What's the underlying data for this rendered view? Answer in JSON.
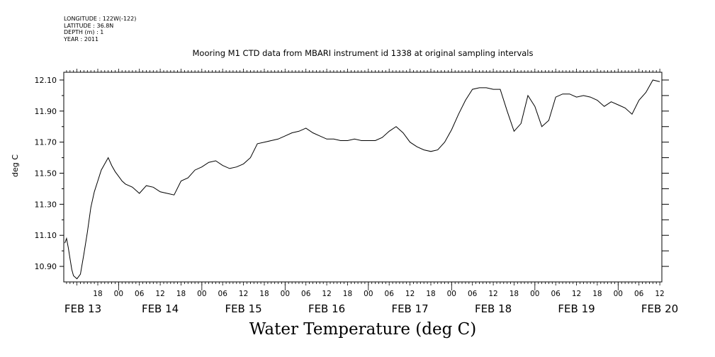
{
  "metadata": {
    "longitude": "LONGITUDE : 122W(-122)",
    "latitude": "LATITUDE : 36.8N",
    "depth": "DEPTH (m) : 1",
    "year": "YEAR : 2011"
  },
  "chart_data": {
    "type": "line",
    "title": "Mooring M1 CTD data from MBARI instrument id 1338 at original sampling intervals",
    "xlabel": "Water Temperature (deg C)",
    "ylabel": "deg C",
    "ylim": [
      10.8,
      12.15
    ],
    "yticks": [
      "10.90",
      "11.10",
      "11.30",
      "11.50",
      "11.70",
      "11.90",
      "12.10"
    ],
    "x_unit": "hours from 2011-02-13 00:00",
    "xlim": [
      8.2,
      180.6
    ],
    "hour_tick_labels": [
      "18",
      "00",
      "06",
      "12",
      "18",
      "00",
      "06",
      "12",
      "18",
      "00",
      "06",
      "12",
      "18",
      "00",
      "06",
      "12",
      "18",
      "00",
      "06",
      "12",
      "18",
      "00",
      "06",
      "12",
      "18",
      "00",
      "06",
      "12",
      "18",
      "00",
      "06",
      "12"
    ],
    "day_labels": [
      "FEB 13",
      "FEB 14",
      "FEB 15",
      "FEB 16",
      "FEB 17",
      "FEB 18",
      "FEB 19",
      "FEB 20"
    ],
    "series": [
      {
        "x": [
          8.5,
          9,
          9.5,
          10,
          10.5,
          11,
          12,
          13,
          14,
          15,
          16,
          17,
          18,
          19,
          20,
          21,
          22,
          23,
          24,
          25,
          26,
          27,
          28,
          30,
          32,
          34,
          36,
          38,
          40,
          42,
          44,
          46,
          48,
          50,
          52,
          54,
          56,
          58,
          60,
          62,
          64,
          66,
          68,
          70,
          72,
          74,
          76,
          78,
          80,
          82,
          84,
          86,
          88,
          90,
          92,
          94,
          96,
          98,
          100,
          102,
          104,
          106,
          108,
          110,
          112,
          114,
          116,
          118,
          120,
          122,
          124,
          126,
          128,
          130,
          132,
          134,
          136,
          138,
          140,
          142,
          144,
          146,
          148,
          150,
          152,
          154,
          156,
          158,
          160,
          162,
          164,
          166,
          168,
          170,
          172,
          174,
          176,
          178,
          180
        ],
        "y": [
          11.05,
          11.08,
          11.02,
          10.95,
          10.88,
          10.84,
          10.82,
          10.85,
          10.98,
          11.12,
          11.28,
          11.38,
          11.45,
          11.52,
          11.56,
          11.6,
          11.55,
          11.51,
          11.48,
          11.45,
          11.43,
          11.42,
          11.41,
          11.37,
          11.42,
          11.41,
          11.38,
          11.37,
          11.36,
          11.45,
          11.47,
          11.52,
          11.54,
          11.57,
          11.58,
          11.55,
          11.53,
          11.54,
          11.56,
          11.6,
          11.69,
          11.7,
          11.71,
          11.72,
          11.74,
          11.76,
          11.77,
          11.79,
          11.76,
          11.74,
          11.72,
          11.72,
          11.71,
          11.71,
          11.72,
          11.71,
          11.71,
          11.71,
          11.73,
          11.77,
          11.8,
          11.76,
          11.7,
          11.67,
          11.65,
          11.64,
          11.65,
          11.7,
          11.78,
          11.88,
          11.97,
          12.04,
          12.05,
          12.05,
          12.04,
          12.04,
          11.9,
          11.77,
          11.82,
          12.0,
          11.93,
          11.8,
          11.84,
          11.99,
          12.01,
          12.01,
          11.99,
          12.0,
          11.99,
          11.97,
          11.93,
          11.96,
          11.94,
          11.92,
          11.88,
          11.97,
          12.02,
          12.1,
          12.09
        ]
      }
    ]
  }
}
